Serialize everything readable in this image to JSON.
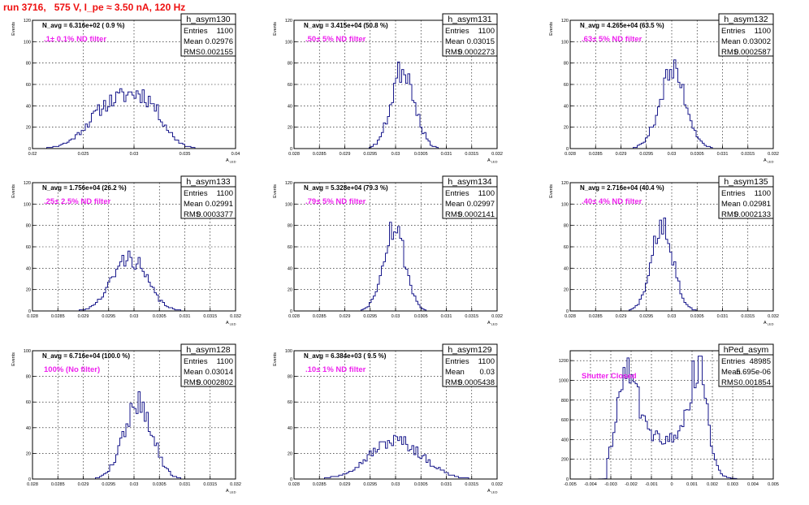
{
  "page": {
    "title": "run 3716,   575 V, I_pe ≈ 3.50 nA, 120 Hz"
  },
  "colors": {
    "line": "#1a1a8c",
    "annotation": "#ee22ee",
    "title": "#ee1111",
    "grid": "#000000"
  },
  "chart_data": [
    {
      "type": "histogram",
      "name": "h_asym130",
      "nAvg": "N_avg = 6.316e+02 ( 0.9 %)",
      "filter": ".1± 0.1% ND filter",
      "stats": [
        [
          "Entries",
          "1100"
        ],
        [
          "Mean",
          "0.02976"
        ],
        [
          "RMS",
          "0.002155"
        ]
      ],
      "ylabel": "Events",
      "xlabel": "A",
      "xsub": "LED",
      "xlim": [
        0.02,
        0.04
      ],
      "ylim": [
        0,
        120
      ],
      "xticks": [
        0.02,
        0.025,
        0.03,
        0.035,
        0.04
      ],
      "xtickLabels": [
        "0.02",
        "0.025",
        "0.03",
        "0.035",
        "0.04"
      ],
      "yticks": [
        0,
        20,
        40,
        60,
        80,
        100,
        120
      ],
      "ytickLabels": [
        "0",
        "20",
        "40",
        "60",
        "80",
        "100",
        "120"
      ],
      "peaks": [
        [
          0.0277,
          0.0022,
          40
        ],
        [
          0.0312,
          0.0017,
          37
        ]
      ],
      "seed": 11
    },
    {
      "type": "histogram",
      "name": "h_asym131",
      "nAvg": "N_avg = 3.415e+04 (50.8 %)",
      "filter": ".50± 5% ND filter",
      "stats": [
        [
          "Entries",
          "1100"
        ],
        [
          "Mean",
          "0.03015"
        ],
        [
          "RMS",
          "0.0002273"
        ]
      ],
      "ylabel": "Events",
      "xlabel": "A",
      "xsub": "LED",
      "xlim": [
        0.028,
        0.032
      ],
      "ylim": [
        0,
        120
      ],
      "xticks": [
        0.028,
        0.0285,
        0.029,
        0.0295,
        0.03,
        0.0305,
        0.031,
        0.0315,
        0.032
      ],
      "xtickLabels": [
        "0.028",
        "0.0285",
        "0.029",
        "0.0295",
        "0.03",
        "0.0305",
        "0.031",
        "0.0315",
        "0.032"
      ],
      "yticks": [
        0,
        20,
        40,
        60,
        80,
        100,
        120
      ],
      "ytickLabels": [
        "0",
        "20",
        "40",
        "60",
        "80",
        "100",
        "120"
      ],
      "peaks": [
        [
          0.03015,
          0.000227,
          76
        ]
      ],
      "seed": 23
    },
    {
      "type": "histogram",
      "name": "h_asym132",
      "nAvg": "N_avg = 4.265e+04 (63.5 %)",
      "filter": ".63± 5% ND filter",
      "stats": [
        [
          "Entries",
          "1100"
        ],
        [
          "Mean",
          "0.03002"
        ],
        [
          "RMS",
          "0.0002587"
        ]
      ],
      "ylabel": "Events",
      "xlabel": "A",
      "xsub": "LED",
      "xlim": [
        0.028,
        0.032
      ],
      "ylim": [
        0,
        120
      ],
      "xticks": [
        0.028,
        0.0285,
        0.029,
        0.0295,
        0.03,
        0.0305,
        0.031,
        0.0315,
        0.032
      ],
      "xtickLabels": [
        "0.028",
        "0.0285",
        "0.029",
        "0.0295",
        "0.03",
        "0.0305",
        "0.031",
        "0.0315",
        "0.032"
      ],
      "yticks": [
        0,
        20,
        40,
        60,
        80,
        100,
        120
      ],
      "ytickLabels": [
        "0",
        "20",
        "40",
        "60",
        "80",
        "100",
        "120"
      ],
      "peaks": [
        [
          0.03002,
          0.000259,
          72
        ]
      ],
      "seed": 37
    },
    {
      "type": "histogram",
      "name": "h_asym133",
      "nAvg": "N_avg = 1.756e+04 (26.2 %)",
      "filter": ".25± 2.5% ND filter",
      "stats": [
        [
          "Entries",
          "1100"
        ],
        [
          "Mean",
          "0.02991"
        ],
        [
          "RMS",
          "0.0003377"
        ]
      ],
      "ylabel": "Events",
      "xlabel": "A",
      "xsub": "LED",
      "xlim": [
        0.028,
        0.032
      ],
      "ylim": [
        0,
        120
      ],
      "xticks": [
        0.028,
        0.0285,
        0.029,
        0.0295,
        0.03,
        0.0305,
        0.031,
        0.0315,
        0.032
      ],
      "xtickLabels": [
        "0.028",
        "0.0285",
        "0.029",
        "0.0295",
        "0.03",
        "0.0305",
        "0.031",
        "0.0315",
        "0.032"
      ],
      "yticks": [
        0,
        20,
        40,
        60,
        80,
        100,
        120
      ],
      "ytickLabels": [
        "0",
        "20",
        "40",
        "60",
        "80",
        "100",
        "120"
      ],
      "peaks": [
        [
          0.02991,
          0.000338,
          50
        ]
      ],
      "seed": 41
    },
    {
      "type": "histogram",
      "name": "h_asym134",
      "nAvg": "N_avg = 5.328e+04 (79.3 %)",
      "filter": ".79± 5% ND filter",
      "stats": [
        [
          "Entries",
          "1100"
        ],
        [
          "Mean",
          "0.02997"
        ],
        [
          "RMS",
          "0.0002141"
        ]
      ],
      "ylabel": "Events",
      "xlabel": "A",
      "xsub": "LED",
      "xlim": [
        0.028,
        0.032
      ],
      "ylim": [
        0,
        120
      ],
      "xticks": [
        0.028,
        0.0285,
        0.029,
        0.0295,
        0.03,
        0.0305,
        0.031,
        0.0315,
        0.032
      ],
      "xtickLabels": [
        "0.028",
        "0.0285",
        "0.029",
        "0.0295",
        "0.03",
        "0.0305",
        "0.031",
        "0.0315",
        "0.032"
      ],
      "yticks": [
        0,
        20,
        40,
        60,
        80,
        100,
        120
      ],
      "ytickLabels": [
        "0",
        "20",
        "40",
        "60",
        "80",
        "100",
        "120"
      ],
      "peaks": [
        [
          0.02997,
          0.000214,
          80
        ]
      ],
      "seed": 53
    },
    {
      "type": "histogram",
      "name": "h_asym135",
      "nAvg": "N_avg = 2.716e+04 (40.4 %)",
      "filter": ".40± 4% ND filter",
      "stats": [
        [
          "Entries",
          "1100"
        ],
        [
          "Mean",
          "0.02981"
        ],
        [
          "RMS",
          "0.0002133"
        ]
      ],
      "ylabel": "Events",
      "xlabel": "A",
      "xsub": "LED",
      "xlim": [
        0.028,
        0.032
      ],
      "ylim": [
        0,
        120
      ],
      "xticks": [
        0.028,
        0.0285,
        0.029,
        0.0295,
        0.03,
        0.0305,
        0.031,
        0.0315,
        0.032
      ],
      "xtickLabels": [
        "0.028",
        "0.0285",
        "0.029",
        "0.0295",
        "0.03",
        "0.0305",
        "0.031",
        "0.0315",
        "0.032"
      ],
      "yticks": [
        0,
        20,
        40,
        60,
        80,
        100,
        120
      ],
      "ytickLabels": [
        "0",
        "20",
        "40",
        "60",
        "80",
        "100",
        "120"
      ],
      "peaks": [
        [
          0.02981,
          0.000213,
          84
        ]
      ],
      "seed": 67
    },
    {
      "type": "histogram",
      "name": "h_asym128",
      "nAvg": "N_avg = 6.716e+04 (100.0 %)",
      "filter": "100% (No filter)",
      "stats": [
        [
          "Entries",
          "1100"
        ],
        [
          "Mean",
          "0.03014"
        ],
        [
          "RMS",
          "0.0002802"
        ]
      ],
      "ylabel": "Events",
      "xlabel": "A",
      "xsub": "LED",
      "xlim": [
        0.028,
        0.032
      ],
      "ylim": [
        0,
        100
      ],
      "xticks": [
        0.028,
        0.0285,
        0.029,
        0.0295,
        0.03,
        0.0305,
        0.031,
        0.0315,
        0.032
      ],
      "xtickLabels": [
        "0.028",
        "0.0285",
        "0.029",
        "0.0295",
        "0.03",
        "0.0305",
        "0.031",
        "0.0315",
        "0.032"
      ],
      "yticks": [
        0,
        20,
        40,
        60,
        80,
        100
      ],
      "ytickLabels": [
        "0",
        "20",
        "40",
        "60",
        "80",
        "100"
      ],
      "peaks": [
        [
          0.03008,
          0.00028,
          60
        ]
      ],
      "seed": 79
    },
    {
      "type": "histogram",
      "name": "h_asym129",
      "nAvg": "N_avg = 6.384e+03 ( 9.5 %)",
      "filter": ".10± 1% ND filter",
      "stats": [
        [
          "Entries",
          "1100"
        ],
        [
          "Mean",
          "0.03"
        ],
        [
          "RMS",
          "0.0005438"
        ]
      ],
      "ylabel": "Events",
      "xlabel": "A",
      "xsub": "LED",
      "xlim": [
        0.028,
        0.032
      ],
      "ylim": [
        0,
        100
      ],
      "xticks": [
        0.028,
        0.0285,
        0.029,
        0.0295,
        0.03,
        0.0305,
        0.031,
        0.0315,
        0.032
      ],
      "xtickLabels": [
        "0.028",
        "0.0285",
        "0.029",
        "0.0295",
        "0.03",
        "0.0305",
        "0.031",
        "0.0315",
        "0.032"
      ],
      "yticks": [
        0,
        20,
        40,
        60,
        80,
        100
      ],
      "ytickLabels": [
        "0",
        "20",
        "40",
        "60",
        "80",
        "100"
      ],
      "peaks": [
        [
          0.03,
          0.00052,
          30
        ]
      ],
      "seed": 97
    },
    {
      "type": "histogram",
      "name": "hPed_asym",
      "nAvg": "",
      "filter": "Shutter Closed",
      "stats": [
        [
          "Entries",
          "48985"
        ],
        [
          "Mean",
          "5.695e-06"
        ],
        [
          "RMS",
          "0.001854"
        ]
      ],
      "ylabel": "",
      "xlabel": "",
      "xsub": "",
      "xlim": [
        -0.005,
        0.005
      ],
      "ylim": [
        0,
        1300
      ],
      "xticks": [
        -0.005,
        -0.004,
        -0.003,
        -0.002,
        -0.001,
        0,
        0.001,
        0.002,
        0.003,
        0.004,
        0.005
      ],
      "xtickLabels": [
        "-0.005",
        "-0.004",
        "-0.003",
        "-0.002",
        "-0.001",
        "0",
        "0.001",
        "0.002",
        "0.003",
        "0.004",
        "0.005"
      ],
      "yticks": [
        0,
        200,
        400,
        600,
        800,
        1000,
        1200
      ],
      "ytickLabels": [
        "0",
        "200",
        "400",
        "600",
        "800",
        "1000",
        "1200"
      ],
      "peaks": [
        [
          -0.0022,
          0.0005,
          1050
        ],
        [
          0.0013,
          0.00045,
          1000
        ],
        [
          -0.0005,
          0.0012,
          420
        ]
      ],
      "cutoffs": [
        -0.0032,
        0.0032
      ],
      "seed": 131
    }
  ]
}
